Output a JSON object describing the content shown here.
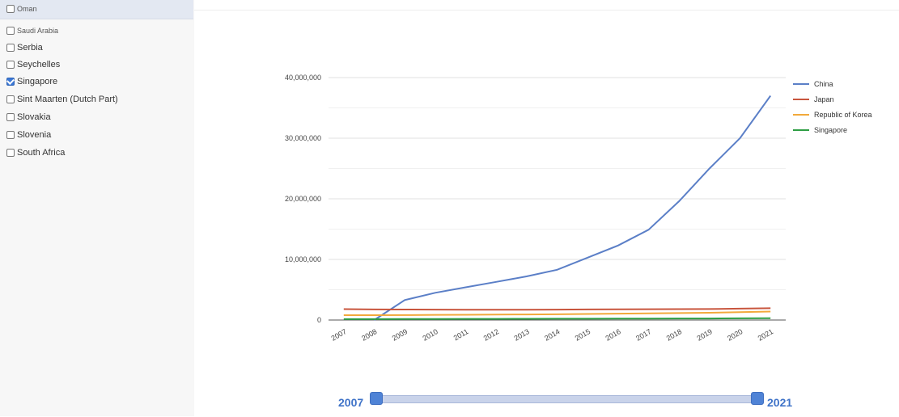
{
  "sidebar": {
    "items": [
      {
        "label": "Oman",
        "checked": false
      },
      {
        "label": "Saudi Arabia",
        "checked": false
      },
      {
        "label": "Serbia",
        "checked": false
      },
      {
        "label": "Seychelles",
        "checked": false
      },
      {
        "label": "Singapore",
        "checked": true
      },
      {
        "label": "Sint Maarten (Dutch Part)",
        "checked": false
      },
      {
        "label": "Slovakia",
        "checked": false
      },
      {
        "label": "Slovenia",
        "checked": false
      },
      {
        "label": "South Africa",
        "checked": false
      }
    ]
  },
  "legend": {
    "items": [
      {
        "label": "China",
        "color": "#5b7fc7"
      },
      {
        "label": "Japan",
        "color": "#c8553d"
      },
      {
        "label": "Republic of Korea",
        "color": "#f2a93b"
      },
      {
        "label": "Singapore",
        "color": "#2e9e44"
      }
    ]
  },
  "slider": {
    "start_label": "2007",
    "end_label": "2021"
  },
  "chart_data": {
    "type": "line",
    "x": [
      "2007",
      "2008",
      "2009",
      "2010",
      "2011",
      "2012",
      "2013",
      "2014",
      "2015",
      "2016",
      "2017",
      "2018",
      "2019",
      "2020",
      "2021"
    ],
    "ylim": [
      0,
      40000000
    ],
    "yticks": [
      "0",
      "10,000,000",
      "20,000,000",
      "30,000,000",
      "40,000,000"
    ],
    "grid": true,
    "legend_position": "right",
    "series": [
      {
        "name": "China",
        "color": "#5b7fc7",
        "values": [
          null,
          0,
          3300000,
          4500000,
          5400000,
          6300000,
          7200000,
          8300000,
          10300000,
          12300000,
          14900000,
          19600000,
          25000000,
          30000000,
          37000000
        ]
      },
      {
        "name": "Japan",
        "color": "#c8553d",
        "values": [
          1800000,
          1750000,
          1730000,
          1720000,
          1700000,
          1700000,
          1700000,
          1720000,
          1740000,
          1760000,
          1780000,
          1800000,
          1820000,
          1880000,
          1950000
        ]
      },
      {
        "name": "Republic of Korea",
        "color": "#f2a93b",
        "values": [
          800000,
          800000,
          820000,
          850000,
          870000,
          900000,
          920000,
          950000,
          1000000,
          1050000,
          1100000,
          1150000,
          1200000,
          1300000,
          1400000
        ]
      },
      {
        "name": "Singapore",
        "color": "#2e9e44",
        "values": [
          150000,
          150000,
          160000,
          170000,
          180000,
          190000,
          200000,
          210000,
          220000,
          230000,
          240000,
          250000,
          260000,
          280000,
          300000
        ]
      }
    ]
  }
}
